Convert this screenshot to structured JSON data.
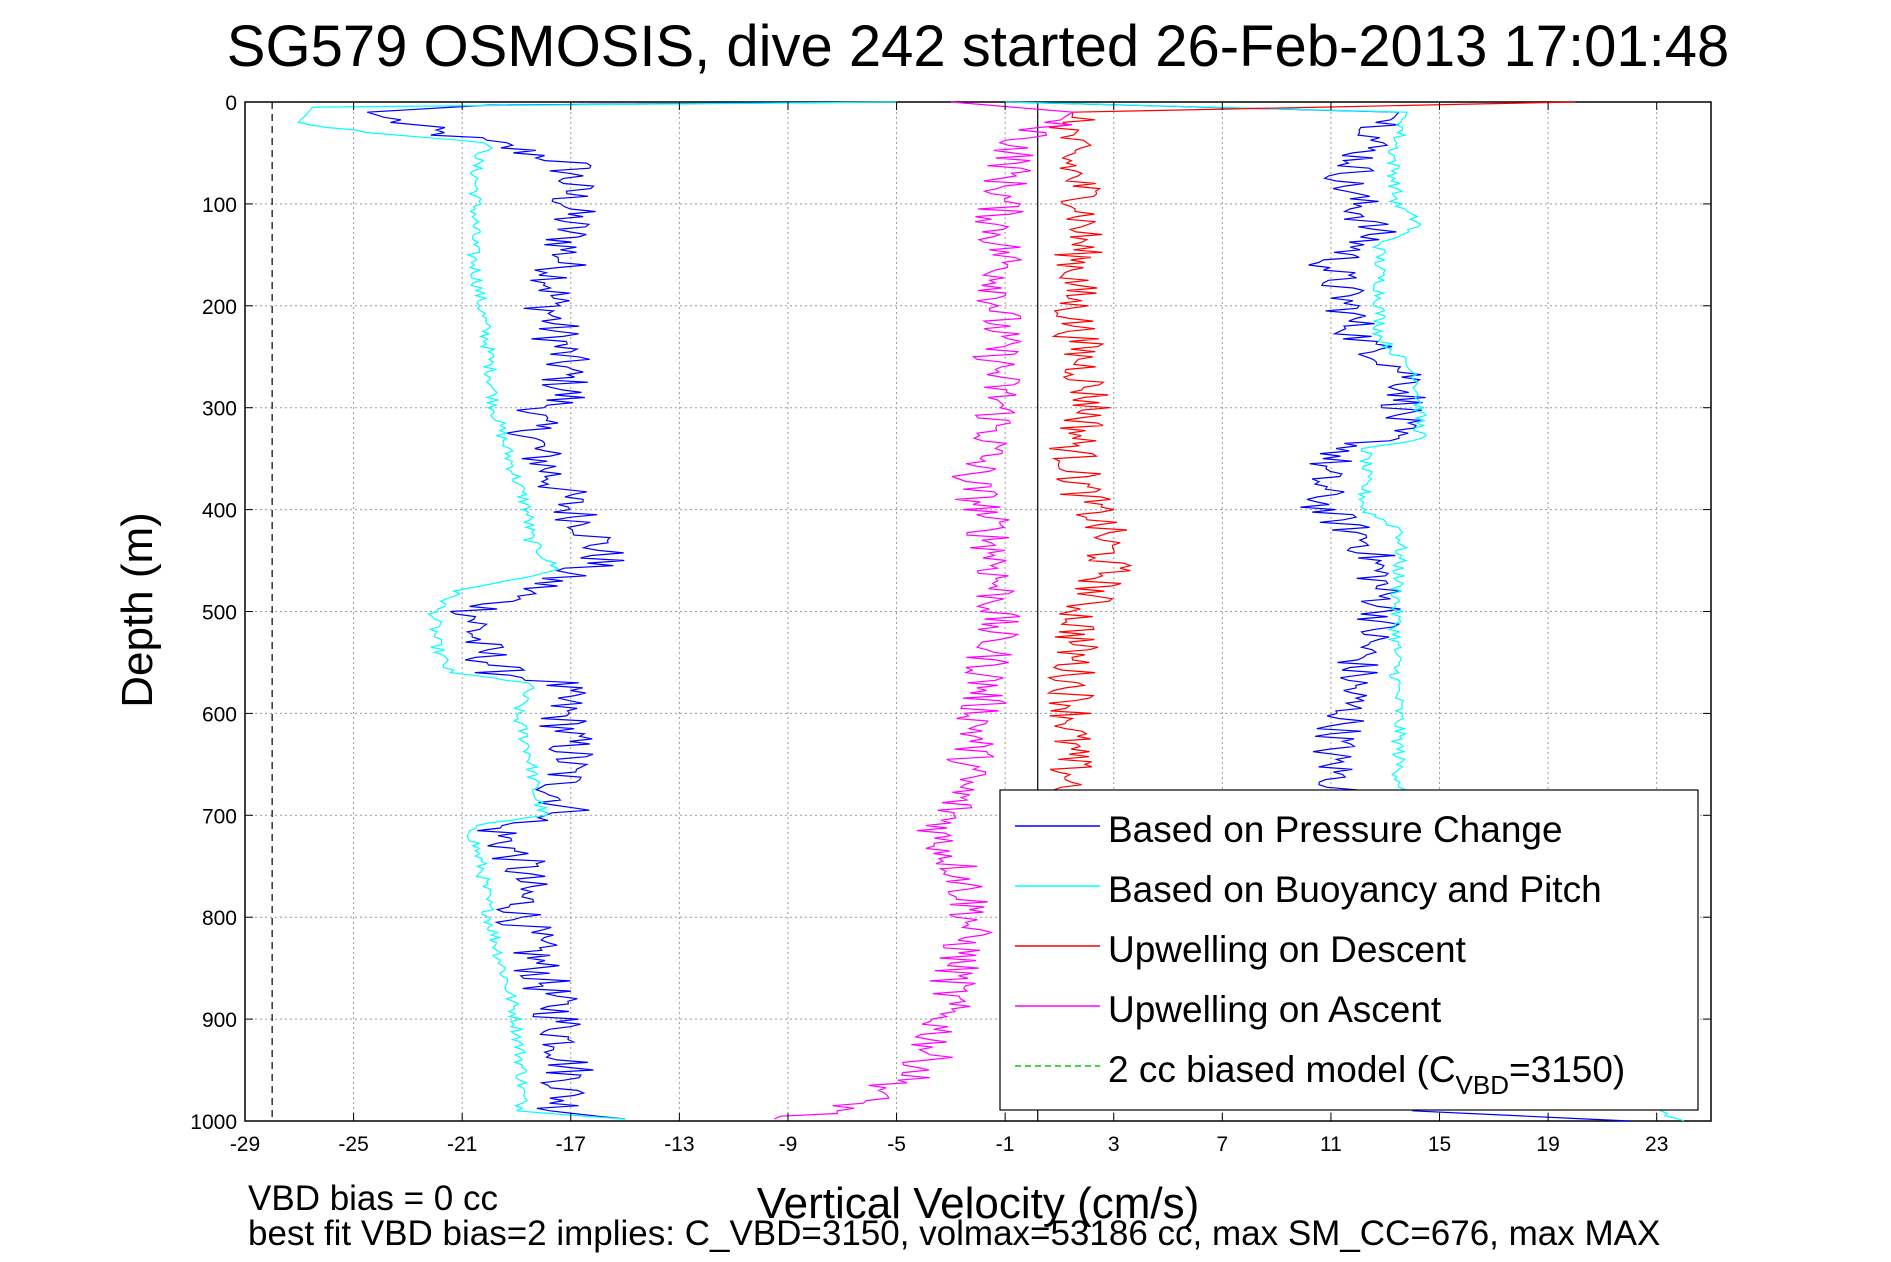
{
  "figure": {
    "title": "SG579 OSMOSIS, dive 242 started 26-Feb-2013 17:01:48",
    "note_line1": "VBD bias = 0 cc",
    "note_line2": "best fit VBD bias=2 implies: C_VBD=3150, volmax=53186 cc, max SM_CC=676, max MAX"
  },
  "chart_data": {
    "type": "line",
    "title": "SG579 OSMOSIS, dive 242 started 26-Feb-2013 17:01:48",
    "xlabel": "Vertical Velocity (cm/s)",
    "ylabel": "Depth (m)",
    "xlim": [
      -29,
      25
    ],
    "ylim": [
      0,
      1000
    ],
    "y_reversed": true,
    "grid": true,
    "legend_position": "bottom-right",
    "xticks": [
      -29,
      -25,
      -21,
      -17,
      -13,
      -9,
      -5,
      -1,
      3,
      7,
      11,
      15,
      19,
      23
    ],
    "yticks": [
      0,
      100,
      200,
      300,
      400,
      500,
      600,
      700,
      800,
      900,
      1000
    ],
    "reference_lines": [
      {
        "style": "dashed",
        "color": "#000000",
        "x": -28
      },
      {
        "style": "solid",
        "color": "#000000",
        "x": 0.2
      }
    ],
    "legend": [
      {
        "label": "Based on Pressure Change",
        "color": "#0000ff",
        "dash": "solid"
      },
      {
        "label": "Based on Buoyancy and Pitch",
        "color": "#00ffff",
        "dash": "solid"
      },
      {
        "label": "Upwelling on Descent",
        "color": "#ff0000",
        "dash": "solid"
      },
      {
        "label": "Upwelling on Ascent",
        "color": "#ff00ff",
        "dash": "solid"
      },
      {
        "label_pre": "2 cc biased model (C",
        "label_sub": "VBD",
        "label_post": "=3150)",
        "color": "#00cc00",
        "dash": "dashed"
      }
    ],
    "series": [
      {
        "name": "Based on Pressure Change (descent)",
        "color": "#0000ff",
        "points": [
          [
            -5,
            0
          ],
          [
            -20,
            3
          ],
          [
            -24.5,
            10
          ],
          [
            -22,
            30
          ],
          [
            -20,
            40
          ],
          [
            -17,
            60
          ],
          [
            -17,
            100
          ],
          [
            -17.2,
            150
          ],
          [
            -17.8,
            200
          ],
          [
            -17.3,
            250
          ],
          [
            -17.2,
            290
          ],
          [
            -18.5,
            310
          ],
          [
            -18.3,
            340
          ],
          [
            -17.6,
            370
          ],
          [
            -17,
            400
          ],
          [
            -16.2,
            420
          ],
          [
            -15.8,
            450
          ],
          [
            -17,
            460
          ],
          [
            -18.5,
            480
          ],
          [
            -20.5,
            500
          ],
          [
            -20.5,
            530
          ],
          [
            -19.6,
            560
          ],
          [
            -17.5,
            570
          ],
          [
            -17.3,
            600
          ],
          [
            -17,
            640
          ],
          [
            -17.5,
            680
          ],
          [
            -17,
            700
          ],
          [
            -19.8,
            710
          ],
          [
            -18.8,
            750
          ],
          [
            -18.8,
            800
          ],
          [
            -18.2,
            850
          ],
          [
            -17.4,
            900
          ],
          [
            -17,
            950
          ],
          [
            -17.3,
            990
          ],
          [
            -15,
            998
          ]
        ]
      },
      {
        "name": "Based on Buoyancy and Pitch (descent)",
        "color": "#00ffff",
        "points": [
          [
            -5,
            0
          ],
          [
            -26.5,
            5
          ],
          [
            -27,
            20
          ],
          [
            -24.5,
            30
          ],
          [
            -20,
            40
          ],
          [
            -20.5,
            60
          ],
          [
            -20.5,
            100
          ],
          [
            -20.6,
            150
          ],
          [
            -20.3,
            200
          ],
          [
            -20,
            250
          ],
          [
            -19.8,
            300
          ],
          [
            -19.5,
            330
          ],
          [
            -19,
            370
          ],
          [
            -18.6,
            400
          ],
          [
            -18.5,
            430
          ],
          [
            -17.5,
            460
          ],
          [
            -21.2,
            480
          ],
          [
            -22,
            500
          ],
          [
            -22,
            530
          ],
          [
            -21.5,
            560
          ],
          [
            -18.5,
            570
          ],
          [
            -19,
            600
          ],
          [
            -18.5,
            640
          ],
          [
            -18.3,
            680
          ],
          [
            -18,
            700
          ],
          [
            -20.7,
            710
          ],
          [
            -20.3,
            750
          ],
          [
            -20,
            800
          ],
          [
            -19.5,
            850
          ],
          [
            -19,
            900
          ],
          [
            -18.8,
            950
          ],
          [
            -18.8,
            990
          ],
          [
            -15,
            998
          ]
        ]
      },
      {
        "name": "Based on Pressure Change (ascent)",
        "color": "#0000ff",
        "points": [
          [
            -1,
            0
          ],
          [
            13.5,
            10
          ],
          [
            12.5,
            40
          ],
          [
            11.5,
            80
          ],
          [
            12,
            100
          ],
          [
            12.6,
            130
          ],
          [
            11,
            160
          ],
          [
            11.6,
            200
          ],
          [
            12,
            230
          ],
          [
            14,
            270
          ],
          [
            13.7,
            300
          ],
          [
            13,
            330
          ],
          [
            11.6,
            340
          ],
          [
            10.6,
            360
          ],
          [
            10.7,
            400
          ],
          [
            12.3,
            430
          ],
          [
            12.6,
            450
          ],
          [
            13,
            500
          ],
          [
            12,
            550
          ],
          [
            11.6,
            600
          ],
          [
            11,
            640
          ],
          [
            11.4,
            680
          ],
          [
            14,
            990
          ],
          [
            22,
            1000
          ]
        ]
      },
      {
        "name": "Based on Buoyancy and Pitch (ascent)",
        "color": "#00ffff",
        "points": [
          [
            -1,
            0
          ],
          [
            13.8,
            10
          ],
          [
            13.3,
            50
          ],
          [
            13.4,
            100
          ],
          [
            14.3,
            120
          ],
          [
            12.8,
            140
          ],
          [
            12.8,
            200
          ],
          [
            12.8,
            230
          ],
          [
            14.2,
            270
          ],
          [
            14.3,
            330
          ],
          [
            12.3,
            340
          ],
          [
            12.2,
            400
          ],
          [
            13.6,
            420
          ],
          [
            13.4,
            500
          ],
          [
            13.4,
            560
          ],
          [
            13.5,
            600
          ],
          [
            13.5,
            660
          ],
          [
            13.7,
            680
          ],
          [
            23,
            990
          ],
          [
            24,
            1000
          ]
        ]
      },
      {
        "name": "Upwelling on Descent",
        "color": "#ff0000",
        "points": [
          [
            20,
            0
          ],
          [
            1.5,
            10
          ],
          [
            1.2,
            50
          ],
          [
            2,
            100
          ],
          [
            1.7,
            150
          ],
          [
            1.5,
            200
          ],
          [
            1.8,
            250
          ],
          [
            2.2,
            300
          ],
          [
            1.5,
            340
          ],
          [
            1.8,
            380
          ],
          [
            2.6,
            420
          ],
          [
            2.8,
            460
          ],
          [
            1.8,
            500
          ],
          [
            1.5,
            550
          ],
          [
            1.5,
            600
          ],
          [
            1.3,
            640
          ],
          [
            1.5,
            680
          ],
          [
            1.8,
            700
          ]
        ]
      },
      {
        "name": "Upwelling on Ascent",
        "color": "#ff00ff",
        "points": [
          [
            -3,
            0
          ],
          [
            1.5,
            10
          ],
          [
            -0.5,
            40
          ],
          [
            -1,
            80
          ],
          [
            -1.3,
            120
          ],
          [
            -1,
            160
          ],
          [
            -1.2,
            200
          ],
          [
            -1.3,
            250
          ],
          [
            -1.2,
            300
          ],
          [
            -1.6,
            340
          ],
          [
            -2.3,
            370
          ],
          [
            -1.8,
            400
          ],
          [
            -1.3,
            450
          ],
          [
            -1.3,
            500
          ],
          [
            -1.6,
            550
          ],
          [
            -1.9,
            600
          ],
          [
            -2.3,
            650
          ],
          [
            -3,
            700
          ],
          [
            -3.5,
            720
          ],
          [
            -2.5,
            760
          ],
          [
            -2.2,
            800
          ],
          [
            -2.8,
            850
          ],
          [
            -3.3,
            900
          ],
          [
            -4,
            950
          ],
          [
            -7,
            990
          ],
          [
            -9.5,
            998
          ]
        ]
      }
    ]
  }
}
